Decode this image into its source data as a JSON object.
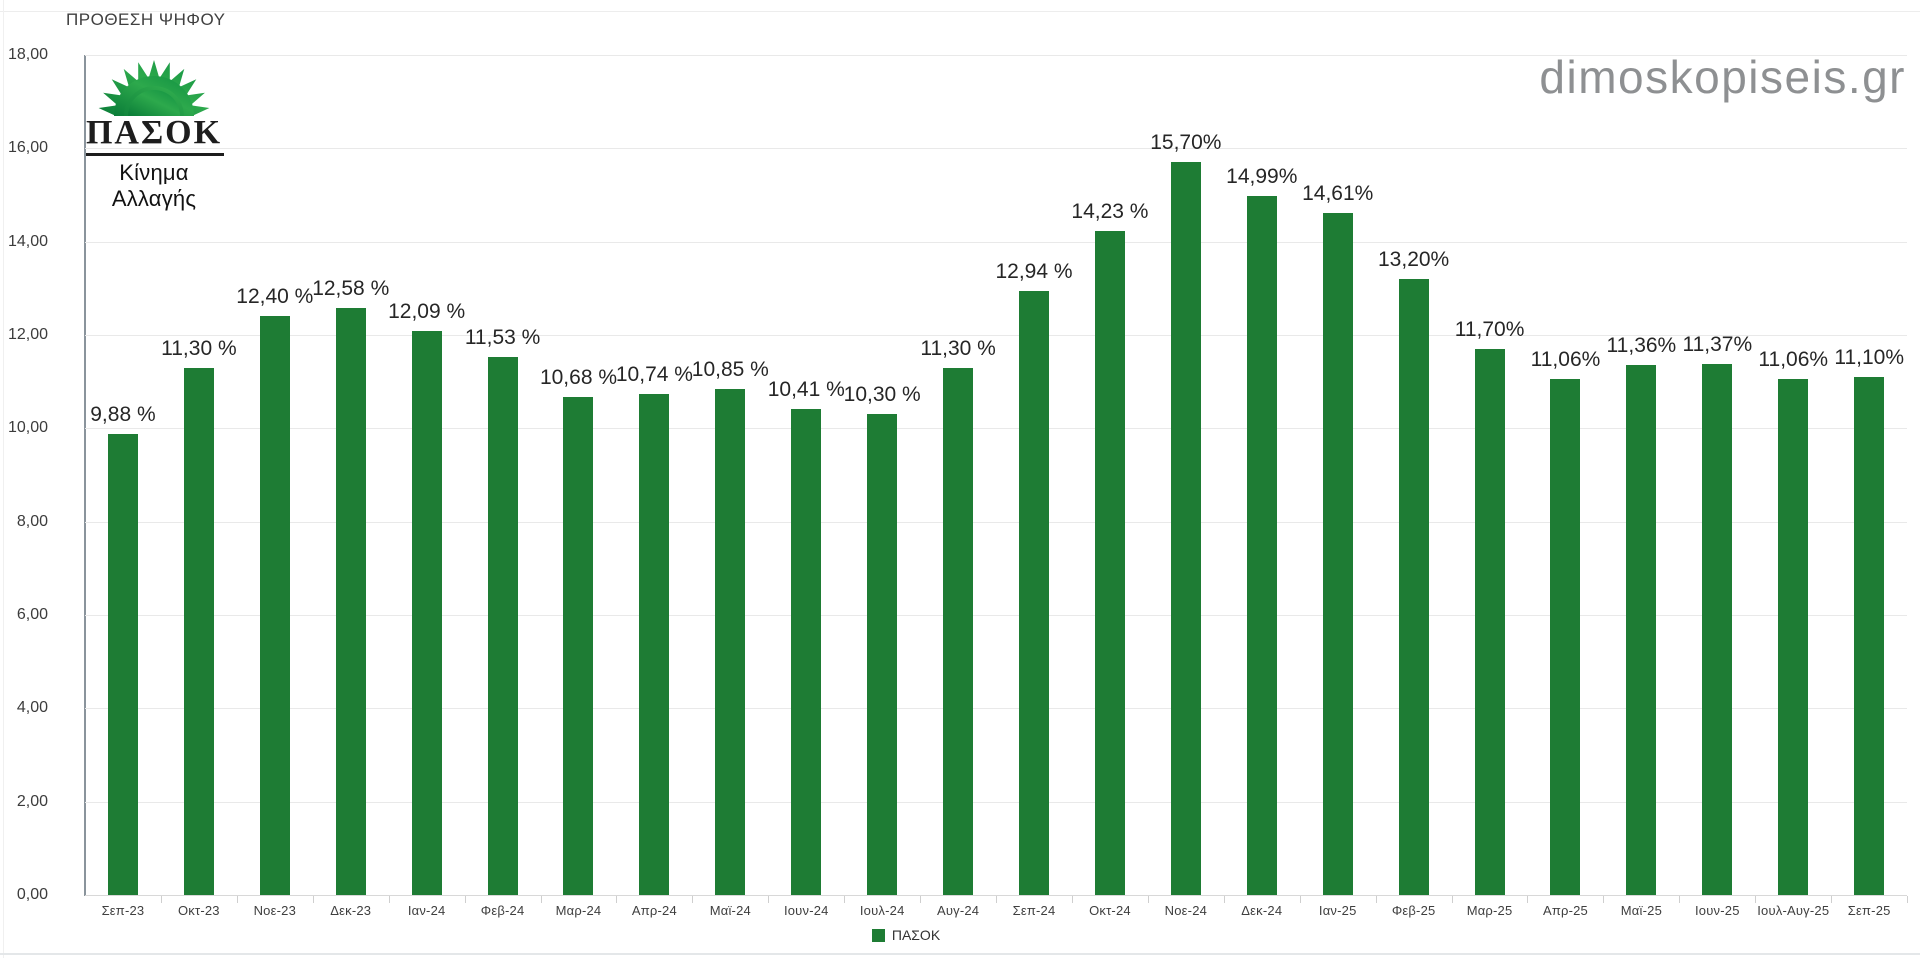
{
  "page": {
    "title": "ΠΡΟΘΕΣΗ ΨΗΦΟΥ",
    "watermark": "dimoskopiseis.gr"
  },
  "logo": {
    "party": "ΠΑΣΟΚ",
    "subtitle": "Κίνημα Αλλαγής"
  },
  "legend": {
    "label": "ΠΑΣΟΚ"
  },
  "colors": {
    "bar": "#1e7c34",
    "axis": "#8a949c",
    "gridline": "#e9e9e9",
    "label_text": "#262626",
    "watermark": "#8e9092",
    "logo_green_dark": "#0a7c38",
    "logo_green_light": "#2da94c"
  },
  "chart_data": {
    "type": "bar",
    "title": "ΠΡΟΘΕΣΗ ΨΗΦΟΥ",
    "categories": [
      "Σεπ-23",
      "Οκτ-23",
      "Νοε-23",
      "Δεκ-23",
      "Ιαν-24",
      "Φεβ-24",
      "Μαρ-24",
      "Απρ-24",
      "Μαϊ-24",
      "Ιουν-24",
      "Ιουλ-24",
      "Αυγ-24",
      "Σεπ-24",
      "Οκτ-24",
      "Νοε-24",
      "Δεκ-24",
      "Ιαν-25",
      "Φεβ-25",
      "Μαρ-25",
      "Απρ-25",
      "Μαϊ-25",
      "Ιουν-25",
      "Ιουλ-Αυγ-25",
      "Σεπ-25"
    ],
    "series": [
      {
        "name": "ΠΑΣΟΚ",
        "color": "#1e7c34",
        "values": [
          9.88,
          11.3,
          12.4,
          12.58,
          12.09,
          11.53,
          10.68,
          10.74,
          10.85,
          10.41,
          10.3,
          11.3,
          12.94,
          14.23,
          15.7,
          14.99,
          14.61,
          13.2,
          11.7,
          11.06,
          11.36,
          11.37,
          11.06,
          11.1
        ],
        "display_labels": [
          "9,88 %",
          "11,30 %",
          "12,40 %",
          "12,58 %",
          "12,09 %",
          "11,53 %",
          "10,68 %",
          "10,74 %",
          "10,85 %",
          "10,41 %",
          "10,30 %",
          "11,30 %",
          "12,94 %",
          "14,23 %",
          "15,70%",
          "14,99%",
          "14,61%",
          "13,20%",
          "11,70%",
          "11,06%",
          "11,36%",
          "11,37%",
          "11,06%",
          "11,10%"
        ]
      }
    ],
    "xlabel": "",
    "ylabel": "",
    "ylim": [
      0,
      18
    ],
    "ytick_labels": [
      "18,00",
      "16,00",
      "14,00",
      "12,00",
      "10,00",
      "8,00",
      "6,00",
      "4,00",
      "2,00",
      "0,00"
    ],
    "grid": true,
    "legend_position": "bottom"
  }
}
